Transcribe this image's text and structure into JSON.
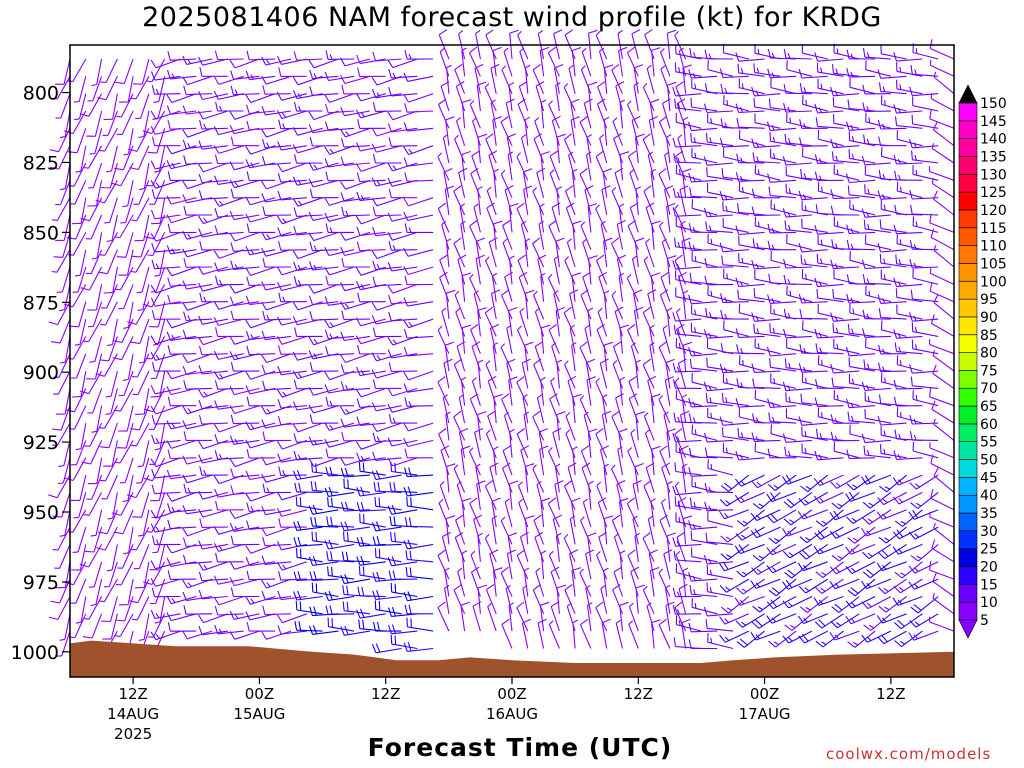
{
  "chart_data": {
    "type": "wind-barb-profile",
    "title": "2025081406 NAM forecast wind profile (kt) for KRDG",
    "xlabel": "Forecast Time (UTC)",
    "ylabel": "",
    "y_axis": {
      "scale": "pressure (inverted)",
      "range": [
        1009,
        783
      ],
      "ticks": [
        800,
        825,
        850,
        875,
        900,
        925,
        950,
        975,
        1000
      ]
    },
    "x_axis": {
      "range_hours_from_run": [
        0,
        84
      ],
      "ticks": [
        {
          "label": "12Z",
          "sub1": "14AUG",
          "sub2": "2025",
          "hour": 6
        },
        {
          "label": "00Z",
          "sub1": "15AUG",
          "sub2": "",
          "hour": 18
        },
        {
          "label": "12Z",
          "sub1": "",
          "sub2": "",
          "hour": 30
        },
        {
          "label": "00Z",
          "sub1": "16AUG",
          "sub2": "",
          "hour": 42
        },
        {
          "label": "12Z",
          "sub1": "",
          "sub2": "",
          "hour": 54
        },
        {
          "label": "00Z",
          "sub1": "17AUG",
          "sub2": "",
          "hour": 66
        },
        {
          "label": "12Z",
          "sub1": "",
          "sub2": "",
          "hour": 78
        }
      ]
    },
    "colorbar": {
      "levels": [
        5,
        10,
        15,
        20,
        25,
        30,
        35,
        40,
        45,
        50,
        55,
        60,
        65,
        70,
        75,
        80,
        85,
        90,
        95,
        100,
        105,
        110,
        115,
        120,
        125,
        130,
        135,
        140,
        145,
        150
      ],
      "colors": [
        "#8a00ff",
        "#6a00ff",
        "#2a00ff",
        "#0000e0",
        "#0032ff",
        "#0064ff",
        "#0096ff",
        "#00b4ff",
        "#00dcdc",
        "#00e6a0",
        "#00ee64",
        "#00f028",
        "#32ff00",
        "#7cff00",
        "#c8ff00",
        "#f5ff00",
        "#ffe600",
        "#ffc800",
        "#ffaa00",
        "#ff9600",
        "#ff7800",
        "#ff5a00",
        "#ff3c00",
        "#ff0000",
        "#ff0040",
        "#ff0070",
        "#ff00a0",
        "#ff00c8",
        "#ff00ff",
        "#ff00ff"
      ],
      "max_arrow_color": "#000000",
      "min_arrow_color": "#8a00ff"
    },
    "terrain": {
      "color": "#a0522d",
      "surface_pressure": [
        [
          0,
          997
        ],
        [
          2,
          996
        ],
        [
          6,
          997
        ],
        [
          10,
          998
        ],
        [
          17,
          998
        ],
        [
          20,
          999
        ],
        [
          23,
          1000
        ],
        [
          27,
          1001
        ],
        [
          31,
          1003
        ],
        [
          35,
          1003
        ],
        [
          38,
          1002
        ],
        [
          42,
          1003
        ],
        [
          48,
          1004
        ],
        [
          58,
          1004
        ],
        [
          60,
          1004
        ],
        [
          63,
          1003
        ],
        [
          67,
          1002
        ],
        [
          73,
          1001
        ],
        [
          84,
          1000
        ]
      ]
    },
    "wind_regimes": [
      {
        "hours": [
          0,
          10
        ],
        "levels": "all",
        "direction_deg": 200,
        "speed_kt": 7
      },
      {
        "hours": [
          10,
          36
        ],
        "levels": "upper",
        "direction_deg": 260,
        "speed_kt": 11
      },
      {
        "hours": [
          24,
          36
        ],
        "levels": "low",
        "direction_deg": 270,
        "speed_kt": 20
      },
      {
        "hours": [
          36,
          60
        ],
        "levels": "all",
        "direction_deg": 345,
        "speed_kt": 8
      },
      {
        "hours": [
          60,
          84
        ],
        "levels": "upper",
        "direction_deg": 275,
        "speed_kt": 13
      },
      {
        "hours": [
          64,
          84
        ],
        "levels": "low",
        "direction_deg": 240,
        "speed_kt": 16
      }
    ],
    "grid": false,
    "legend": "colorbar right"
  },
  "watermark": "coolwx.com/models"
}
